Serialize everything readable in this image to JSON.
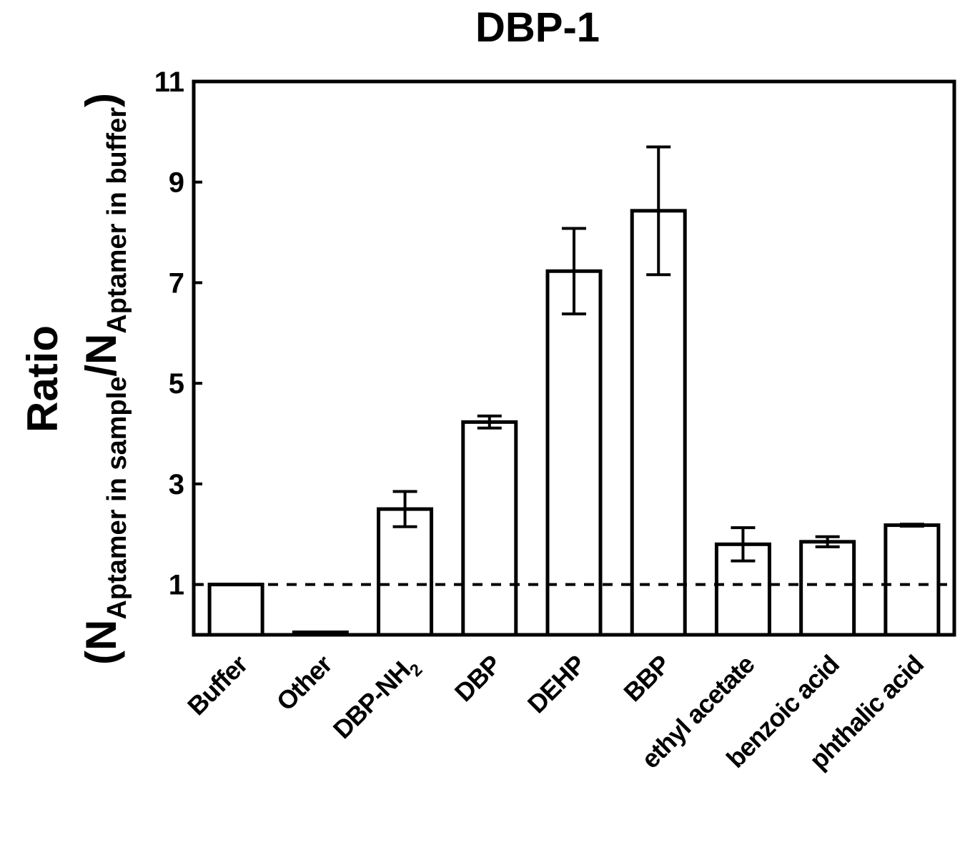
{
  "chart_data": {
    "type": "bar",
    "title": "DBP-1",
    "ylabel": {
      "line1": "Ratio",
      "paren_open": "(",
      "n1": "N",
      "sub1": "Aptamer in sample",
      "slash_n": "/N",
      "sub2": "Aptamer in buffer",
      "paren_close": ")"
    },
    "ylim": [
      0,
      11
    ],
    "yticks": [
      1,
      3,
      5,
      7,
      9,
      11
    ],
    "reference_line": 1,
    "categories": [
      {
        "label": "Buffer",
        "sub": ""
      },
      {
        "label": "Other",
        "sub": ""
      },
      {
        "label": "DBP-NH",
        "sub": "2"
      },
      {
        "label": "DBP",
        "sub": ""
      },
      {
        "label": "DEHP",
        "sub": ""
      },
      {
        "label": "BBP",
        "sub": ""
      },
      {
        "label": "ethyl acetate",
        "sub": ""
      },
      {
        "label": "benzoic acid",
        "sub": ""
      },
      {
        "label": "phthalic acid",
        "sub": ""
      }
    ],
    "values": [
      1.0,
      0.05,
      2.5,
      4.23,
      7.23,
      8.43,
      1.8,
      1.85,
      2.18
    ],
    "errors": [
      0,
      0,
      0.35,
      0.12,
      0.85,
      1.27,
      0.33,
      0.1,
      0.02
    ]
  }
}
